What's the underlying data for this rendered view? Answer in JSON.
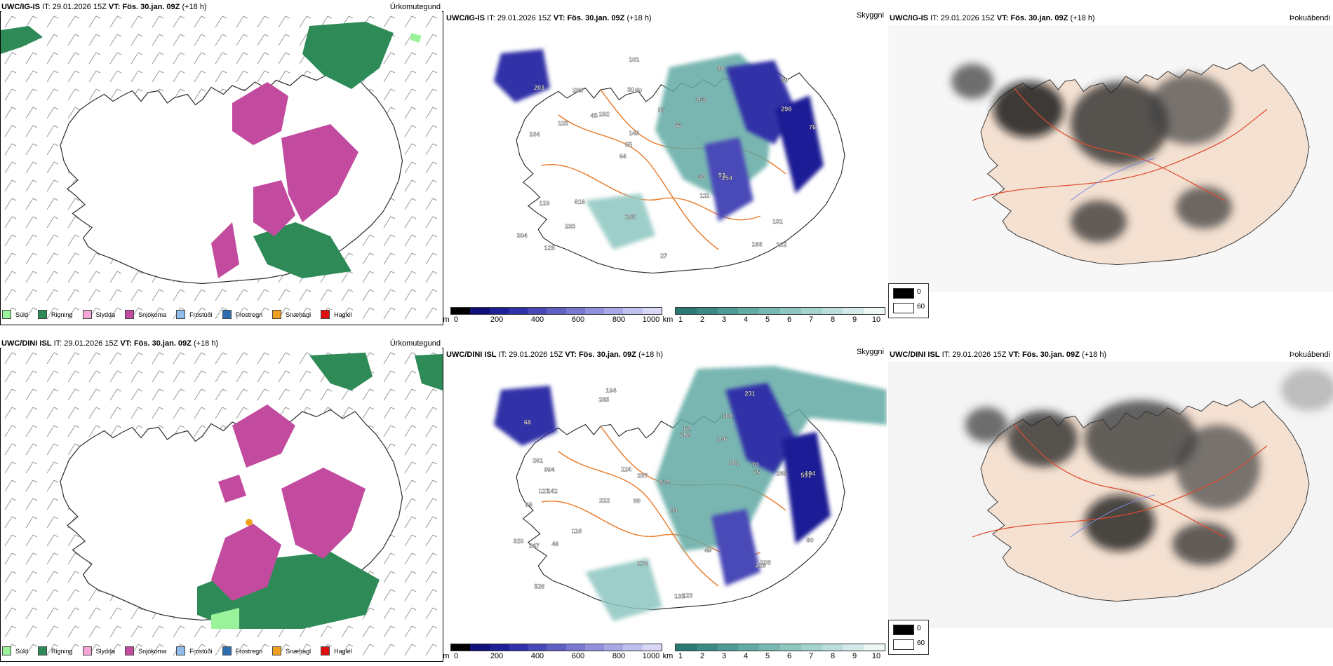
{
  "rows": [
    {
      "id": "top",
      "precip": {
        "model": "UWC/IG-IS",
        "it_label": "IT:",
        "it_value": "29.01.2026 15Z",
        "vt_label": "VT:",
        "vt_value": "Fös. 30.jan. 09Z",
        "lead": "(+18 h)",
        "right_label": "Úrkomutegund"
      },
      "cloud": {
        "model": "UWC/IG-IS",
        "it_label": "IT:",
        "it_value": "29.01.2026 15Z",
        "vt_label": "VT:",
        "vt_value": "Fös. 30.jan. 09Z",
        "lead": "(+18 h)",
        "right_label": "Skyggni"
      },
      "fog": {
        "model": "UWC/IG-IS",
        "it_label": "IT:",
        "it_value": "29.01.2026 15Z",
        "vt_label": "VT:",
        "vt_value": "Fös. 30.jan. 09Z",
        "lead": "(+18 h)",
        "right_label": "Þokuábendi"
      }
    },
    {
      "id": "bottom",
      "precip": {
        "model": "UWC/DINI ISL",
        "it_label": "IT:",
        "it_value": "29.01.2026 15Z",
        "vt_label": "VT:",
        "vt_value": "Fös. 30.jan. 09Z",
        "lead": "(+18 h)",
        "right_label": "Úrkomutegund"
      },
      "cloud": {
        "model": "UWC/DINI ISL",
        "it_label": "IT:",
        "it_value": "29.01.2026 15Z",
        "vt_label": "VT:",
        "vt_value": "Fös. 30.jan. 09Z",
        "lead": "(+18 h)",
        "right_label": "Skyggni"
      },
      "fog": {
        "model": "UWC/DINI ISL",
        "it_label": "IT:",
        "it_value": "29.01.2026 15Z",
        "vt_label": "VT:",
        "vt_value": "Fös. 30.jan. 09Z",
        "lead": "(+18 h)",
        "right_label": "Þokuábendi"
      }
    }
  ],
  "precip_legend": [
    {
      "label": "Súld",
      "color": "#9af29a"
    },
    {
      "label": "Rigning",
      "color": "#2e8b57"
    },
    {
      "label": "Slydda",
      "color": "#f4a6d7"
    },
    {
      "label": "Snjókoma",
      "color": "#c24ba0"
    },
    {
      "label": "Frostúði",
      "color": "#8fbcec"
    },
    {
      "label": "Frostregn",
      "color": "#2f6db3"
    },
    {
      "label": "Snæhagl",
      "color": "#f0a020"
    },
    {
      "label": "Haglél",
      "color": "#e01010"
    }
  ],
  "ceiling_scale": {
    "unit": "m",
    "ticks": [
      "0",
      "200",
      "400",
      "600",
      "800",
      "1000"
    ],
    "colors": [
      "#000000",
      "#10107a",
      "#1e1e96",
      "#3030a8",
      "#4848b8",
      "#6060c4",
      "#7878d0",
      "#9090dc",
      "#a8a8e6",
      "#c0c0ee",
      "#d8d8f6"
    ]
  },
  "visibility_scale": {
    "unit": "km",
    "ticks": [
      "1",
      "2",
      "3",
      "4",
      "5",
      "6",
      "7",
      "8",
      "9",
      "10"
    ],
    "colors": [
      "#2a7a74",
      "#3a8a84",
      "#4e9a94",
      "#62aaa4",
      "#78b8b2",
      "#8ec6c0",
      "#a4d2cd",
      "#bcdedb",
      "#d4eae8",
      "#ecf6f5"
    ]
  },
  "fog_key": [
    {
      "label": "0",
      "color": "#000000"
    },
    {
      "label": "60",
      "color": "#ffffff"
    }
  ],
  "ceiling_labels_top": [
    "102",
    "164",
    "99",
    "64",
    "163",
    "128",
    "30",
    "97",
    "120",
    "292",
    "304",
    "233",
    "80",
    "66",
    "254",
    "203",
    "101",
    "76",
    "69",
    "298",
    "55",
    "205",
    "149",
    "283",
    "89",
    "616",
    "166",
    "131",
    "93",
    "27",
    "45",
    "125",
    "111"
  ],
  "ceiling_labels_bottom": [
    "104",
    "181",
    "591",
    "99",
    "83",
    "142",
    "68",
    "106",
    "66",
    "786",
    "879",
    "526",
    "285",
    "222",
    "133",
    "123",
    "274",
    "231",
    "181",
    "116",
    "994",
    "127",
    "194",
    "265",
    "320",
    "261",
    "287",
    "75",
    "203",
    "247",
    "216",
    "62",
    "46",
    "124",
    "49",
    "80",
    "70"
  ]
}
